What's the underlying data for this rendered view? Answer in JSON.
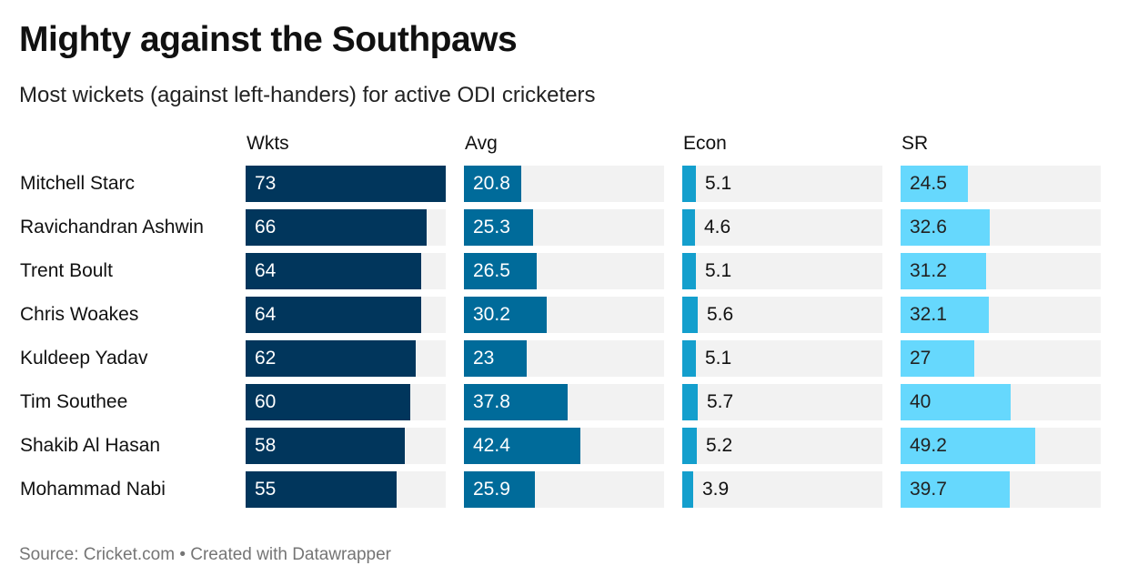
{
  "header": {
    "title": "Mighty against the Southpaws",
    "subtitle": "Most wickets (against left-handers) for active ODI cricketers"
  },
  "footer": {
    "text": "Source: Cricket.com • Created with Datawrapper"
  },
  "chart_data": {
    "type": "bar",
    "title": "Mighty against the Southpaws",
    "subtitle": "Most wickets (against left-handers) for active ODI cricketers",
    "scale_max": 73,
    "categories": [
      "Mitchell Starc",
      "Ravichandran Ashwin",
      "Trent Boult",
      "Chris Woakes",
      "Kuldeep Yadav",
      "Tim Southee",
      "Shakib Al Hasan",
      "Mohammad Nabi"
    ],
    "series": [
      {
        "name": "Wkts",
        "color": "#01365c",
        "text_color": "#ffffff",
        "labels": [
          "73",
          "66",
          "64",
          "64",
          "62",
          "60",
          "58",
          "55"
        ],
        "values": [
          73,
          66,
          64,
          64,
          62,
          60,
          58,
          55
        ]
      },
      {
        "name": "Avg",
        "color": "#006b9a",
        "text_color": "#ffffff",
        "labels": [
          "20.8",
          "25.3",
          "26.5",
          "30.2",
          "23",
          "37.8",
          "42.4",
          "25.9"
        ],
        "values": [
          20.8,
          25.3,
          26.5,
          30.2,
          23,
          37.8,
          42.4,
          25.9
        ]
      },
      {
        "name": "Econ",
        "color": "#149fcd",
        "text_color": "#111111",
        "labels": [
          "5.1",
          "4.6",
          "5.1",
          "5.6",
          "5.1",
          "5.7",
          "5.2",
          "3.9"
        ],
        "values": [
          5.1,
          4.6,
          5.1,
          5.6,
          5.1,
          5.7,
          5.2,
          3.9
        ]
      },
      {
        "name": "SR",
        "color": "#66d8fd",
        "text_color": "#222222",
        "labels": [
          "24.5",
          "32.6",
          "31.2",
          "32.1",
          "27",
          "40",
          "49.2",
          "39.7"
        ],
        "values": [
          24.5,
          32.6,
          31.2,
          32.1,
          27,
          40,
          49.2,
          39.7
        ]
      }
    ],
    "footer": "Source: Cricket.com • Created with Datawrapper"
  }
}
